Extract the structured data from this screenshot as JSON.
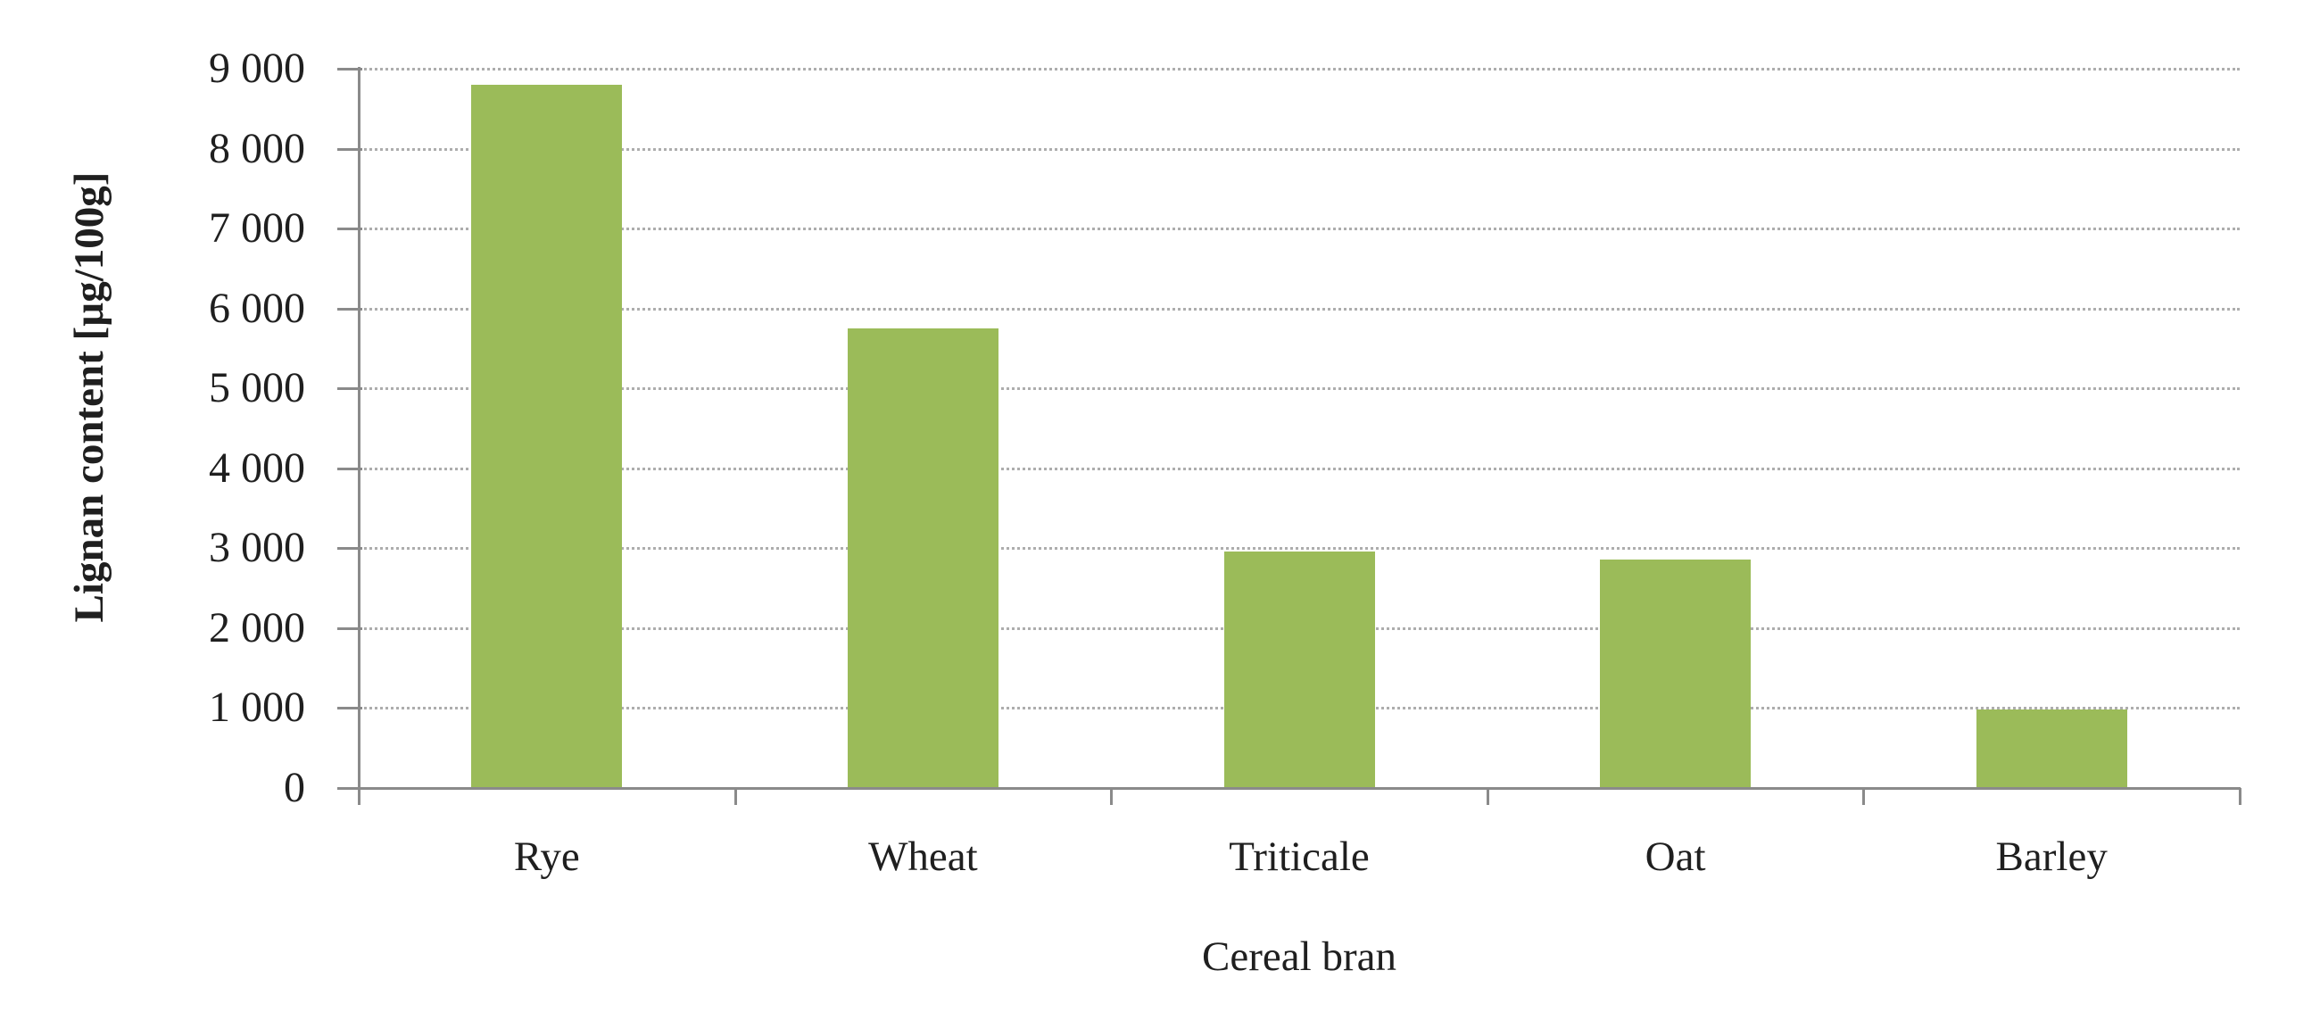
{
  "chart_data": {
    "type": "bar",
    "title": "",
    "xlabel": "Cereal bran",
    "ylabel": "Lignan content [µg/100g]",
    "categories": [
      "Rye",
      "Wheat",
      "Triticale",
      "Oat",
      "Barley"
    ],
    "values": [
      8800,
      5750,
      2960,
      2860,
      980
    ],
    "series": [
      {
        "name": "Lignan content",
        "values": [
          8800,
          5750,
          2960,
          2860,
          980
        ]
      }
    ],
    "ylim": [
      0,
      9000
    ],
    "ytick_step": 1000,
    "ytick_labels": [
      "0",
      "1 000",
      "2 000",
      "3 000",
      "4 000",
      "5 000",
      "6 000",
      "7 000",
      "8 000",
      "9 000"
    ],
    "grid": "horizontal-dotted",
    "legend": "none",
    "bar_color": "#9BBB59",
    "axis_color": "#8a8a8a",
    "gridline_color": "#adadad",
    "text_color": "#1f1f1f"
  }
}
